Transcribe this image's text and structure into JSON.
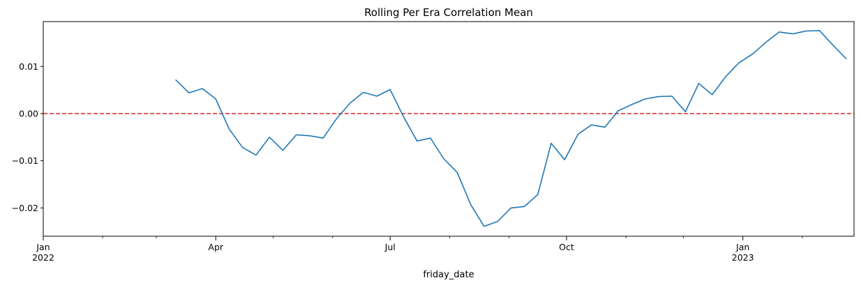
{
  "chart_data": {
    "type": "line",
    "title": "Rolling Per Era Correlation Mean",
    "xlabel": "friday_date",
    "ylabel": "",
    "xlim": [
      "2022-01-01",
      "2023-02-28"
    ],
    "ylim": [
      -0.026,
      0.0195
    ],
    "grid": false,
    "legend": "none",
    "colors": {
      "series": "#1f77b4",
      "reference_line": "#d62728"
    },
    "x_major_ticks": [
      {
        "date": "2022-01-01",
        "label": "Jan",
        "sublabel": "2022"
      },
      {
        "date": "2022-04-01",
        "label": "Apr",
        "sublabel": ""
      },
      {
        "date": "2022-07-01",
        "label": "Jul",
        "sublabel": ""
      },
      {
        "date": "2022-10-01",
        "label": "Oct",
        "sublabel": ""
      },
      {
        "date": "2023-01-01",
        "label": "Jan",
        "sublabel": "2023"
      }
    ],
    "x_minor_ticks": [
      "2022-02-01",
      "2022-03-01",
      "2022-05-01",
      "2022-06-01",
      "2022-08-01",
      "2022-09-01",
      "2022-11-01",
      "2022-12-01",
      "2023-02-01"
    ],
    "y_ticks": [
      {
        "value": 0.01,
        "label": "0.01"
      },
      {
        "value": 0.0,
        "label": "0.00"
      },
      {
        "value": -0.01,
        "label": "−0.01"
      },
      {
        "value": -0.02,
        "label": "−0.02"
      }
    ],
    "reference_line": {
      "y": 0.0,
      "style": "dashed"
    },
    "series": [
      {
        "x": [
          "2022-03-11",
          "2022-03-18",
          "2022-03-25",
          "2022-04-01",
          "2022-04-08",
          "2022-04-15",
          "2022-04-22",
          "2022-04-29",
          "2022-05-06",
          "2022-05-13",
          "2022-05-20",
          "2022-05-27",
          "2022-06-03",
          "2022-06-10",
          "2022-06-17",
          "2022-06-24",
          "2022-07-01",
          "2022-07-08",
          "2022-07-15",
          "2022-07-22",
          "2022-07-29",
          "2022-08-05",
          "2022-08-12",
          "2022-08-19",
          "2022-08-26",
          "2022-09-02",
          "2022-09-09",
          "2022-09-16",
          "2022-09-23",
          "2022-09-30",
          "2022-10-07",
          "2022-10-14",
          "2022-10-21",
          "2022-10-28",
          "2022-11-04",
          "2022-11-11",
          "2022-11-18",
          "2022-11-25",
          "2022-12-02",
          "2022-12-09",
          "2022-12-16",
          "2022-12-23",
          "2022-12-30",
          "2023-01-06",
          "2023-01-13",
          "2023-01-20",
          "2023-01-27",
          "2023-02-03",
          "2023-02-10",
          "2023-02-17",
          "2023-02-24"
        ],
        "values": [
          0.0072,
          0.0044,
          0.0053,
          0.0031,
          -0.0033,
          -0.0072,
          -0.0088,
          -0.005,
          -0.0078,
          -0.0045,
          -0.0047,
          -0.0052,
          -0.0011,
          0.0022,
          0.0045,
          0.0037,
          0.0051,
          -0.0007,
          -0.0058,
          -0.0052,
          -0.0096,
          -0.0125,
          -0.0193,
          -0.0239,
          -0.0229,
          -0.02,
          -0.0197,
          -0.0172,
          -0.0063,
          -0.0098,
          -0.0044,
          -0.0024,
          -0.0029,
          0.0006,
          0.0019,
          0.0031,
          0.0036,
          0.0037,
          0.0004,
          0.0064,
          0.004,
          0.0078,
          0.0108,
          0.0126,
          0.0151,
          0.0173,
          0.0169,
          0.0175,
          0.0176,
          0.0145,
          0.0116
        ]
      }
    ]
  }
}
